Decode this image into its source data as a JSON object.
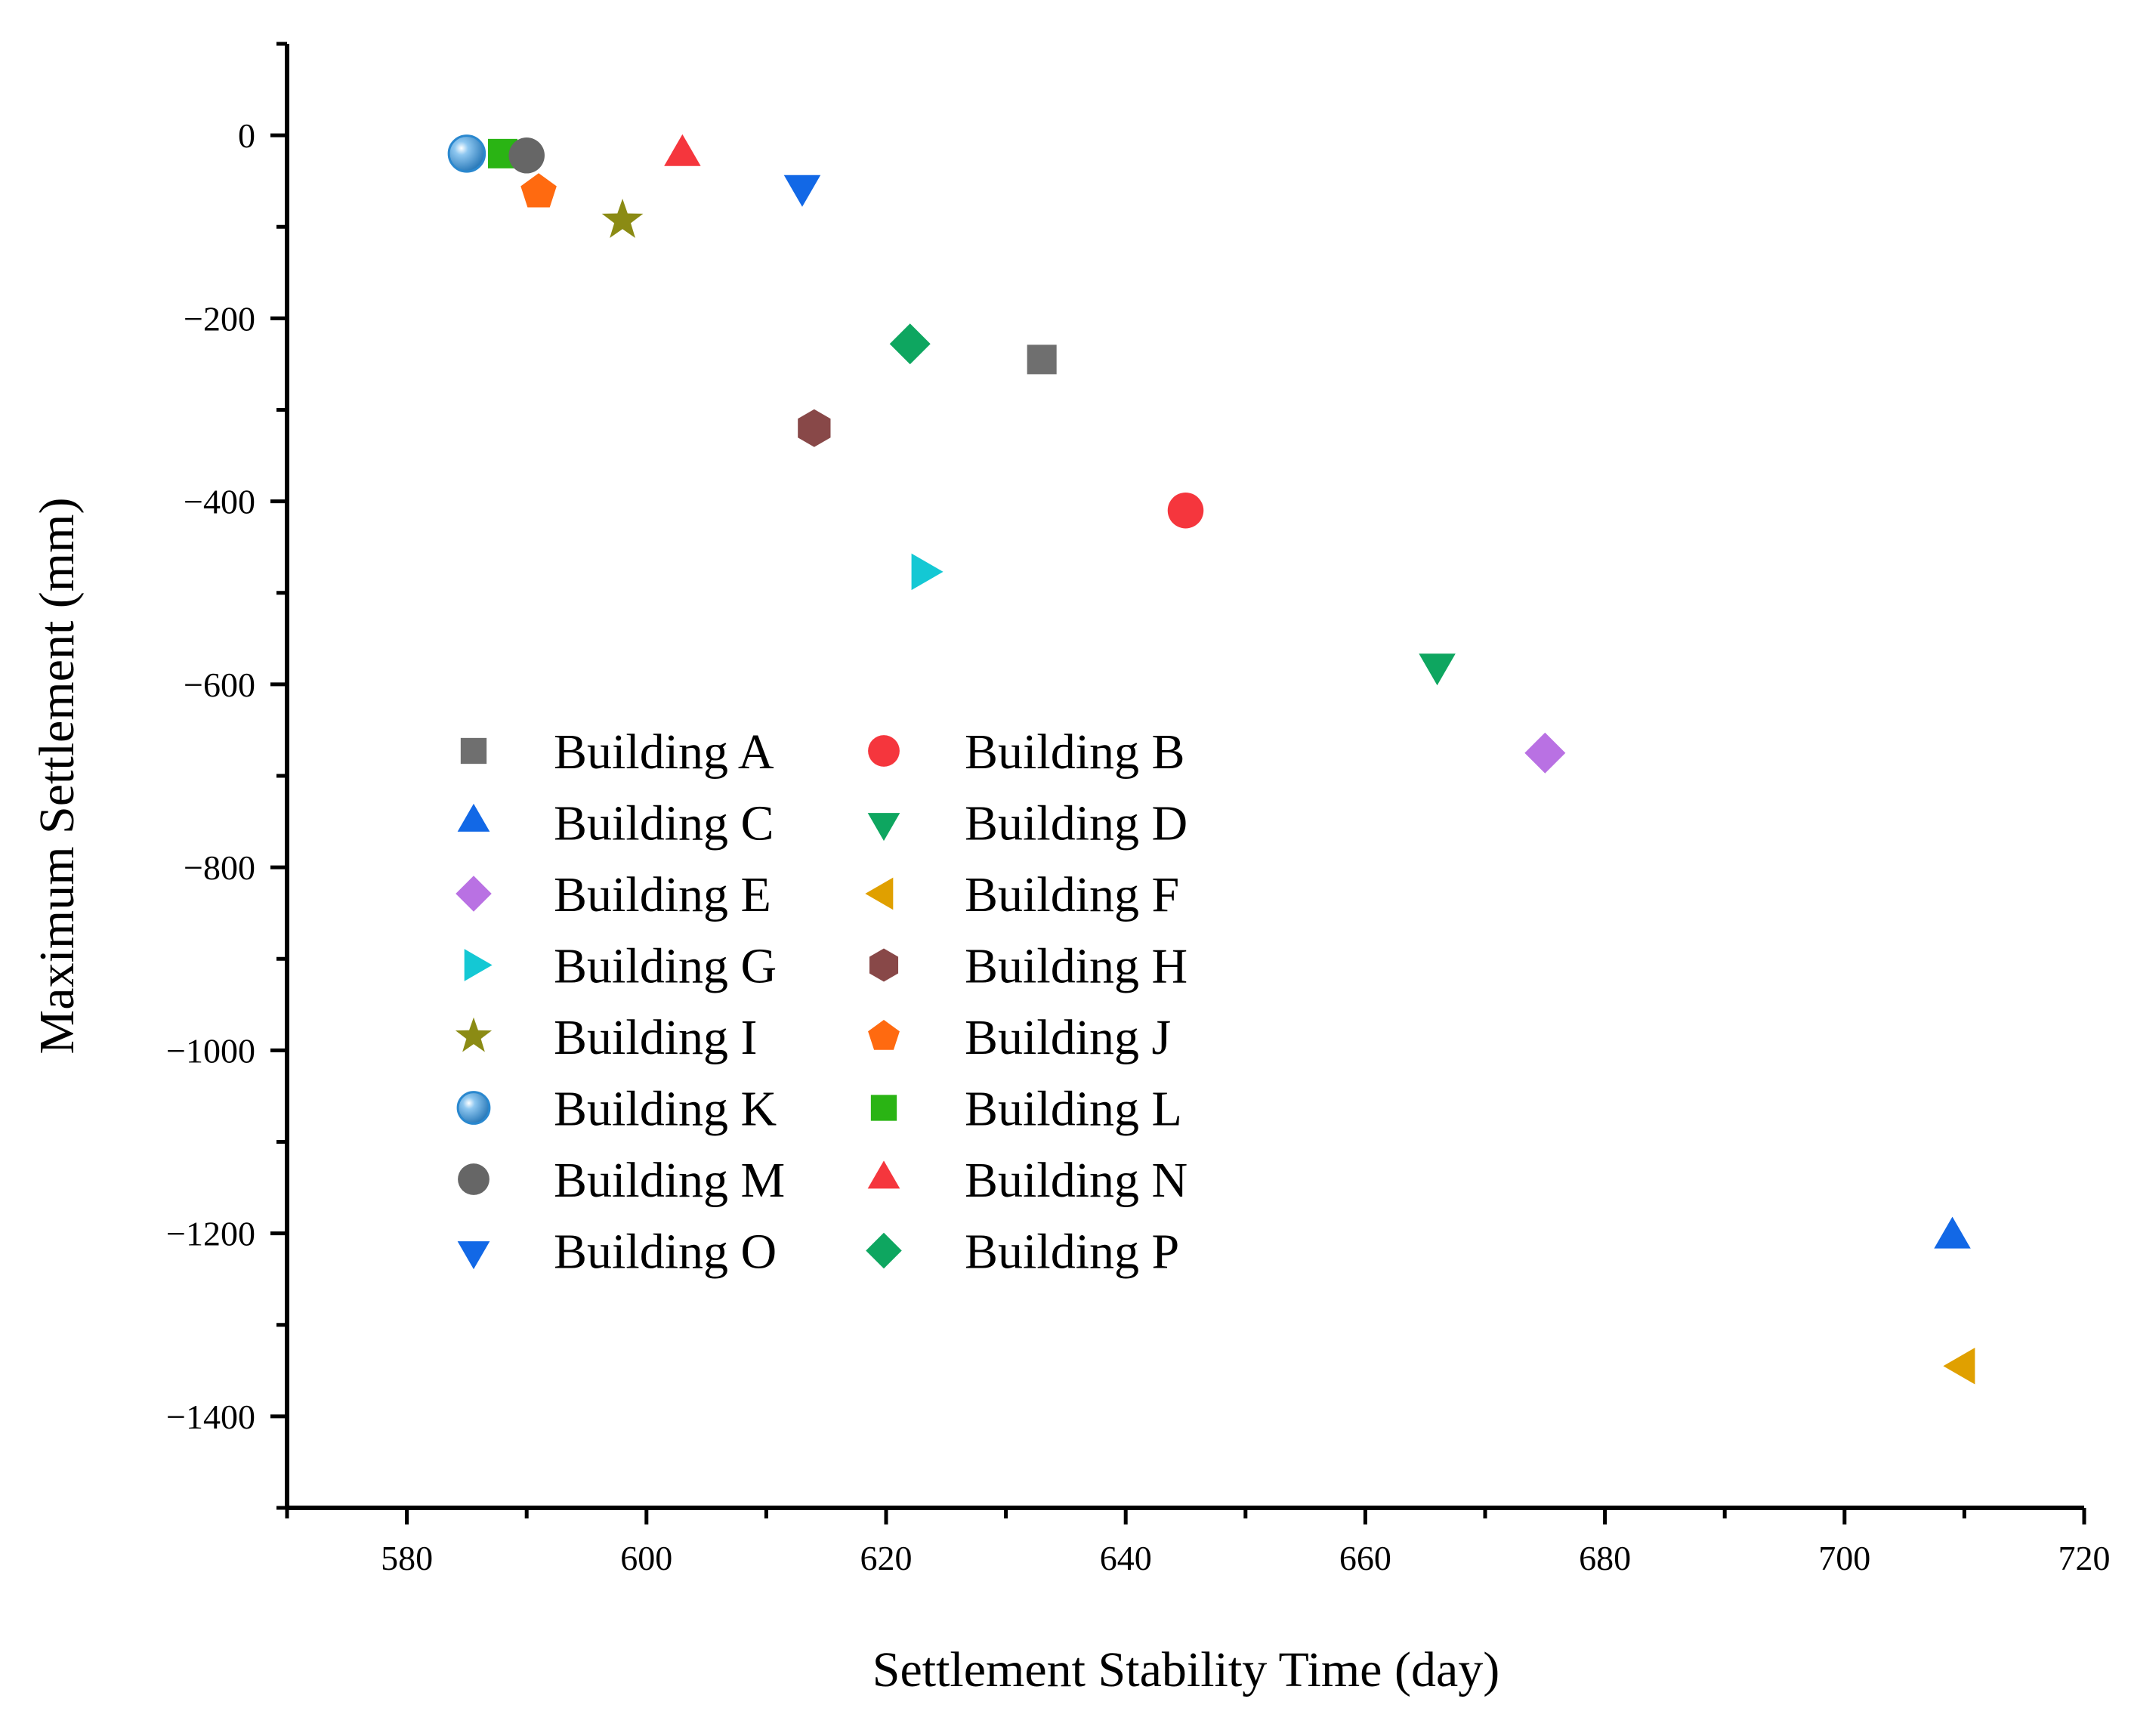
{
  "chart_data": {
    "type": "scatter",
    "title": "",
    "xlabel": "Settlement Stability Time (day)",
    "ylabel": "Maximum Settlement (mm)",
    "xlim": [
      570,
      720
    ],
    "ylim": [
      -1500,
      100
    ],
    "xticks": [
      580,
      600,
      620,
      640,
      660,
      680,
      700,
      720
    ],
    "yticks": [
      0,
      -200,
      -400,
      -600,
      -800,
      -1000,
      -1200,
      -1400
    ],
    "xtick_labels": [
      "580",
      "600",
      "620",
      "640",
      "660",
      "680",
      "700",
      "720"
    ],
    "ytick_labels": [
      "0",
      "−200",
      "−400",
      "−600",
      "−800",
      "−1000",
      "−1200",
      "−1400"
    ],
    "grid": false,
    "legend_position": "center-left",
    "series": [
      {
        "name": "Building A",
        "marker": "square",
        "color": "#6f6f6f",
        "x": 633,
        "y": -245
      },
      {
        "name": "Building B",
        "marker": "circle",
        "color": "#f5363d",
        "x": 645,
        "y": -410
      },
      {
        "name": "Building C",
        "marker": "triangle-up",
        "color": "#1268e6",
        "x": 709,
        "y": -1205
      },
      {
        "name": "Building D",
        "marker": "triangle-down",
        "color": "#0ea660",
        "x": 666,
        "y": -578
      },
      {
        "name": "Building E",
        "marker": "diamond",
        "color": "#b971e3",
        "x": 675,
        "y": -675
      },
      {
        "name": "Building F",
        "marker": "triangle-left",
        "color": "#e0a000",
        "x": 710,
        "y": -1345
      },
      {
        "name": "Building G",
        "marker": "triangle-right",
        "color": "#14c8d4",
        "x": 623,
        "y": -477
      },
      {
        "name": "Building H",
        "marker": "hexagon",
        "color": "#884848",
        "x": 614,
        "y": -320
      },
      {
        "name": "Building I",
        "marker": "star",
        "color": "#8b8b14",
        "x": 598,
        "y": -93
      },
      {
        "name": "Building J",
        "marker": "pentagon",
        "color": "#ff6a10",
        "x": 591,
        "y": -62
      },
      {
        "name": "Building K",
        "marker": "sphere",
        "color": "#2a88cf",
        "x": 585,
        "y": -20
      },
      {
        "name": "Building L",
        "marker": "square",
        "color": "#2ab414",
        "x": 588,
        "y": -20
      },
      {
        "name": "Building M",
        "marker": "circle",
        "color": "#666666",
        "x": 590,
        "y": -22
      },
      {
        "name": "Building N",
        "marker": "triangle-up",
        "color": "#f5363d",
        "x": 603,
        "y": -22
      },
      {
        "name": "Building O",
        "marker": "triangle-down",
        "color": "#1268e6",
        "x": 613,
        "y": -55
      },
      {
        "name": "Building P",
        "marker": "diamond",
        "color": "#0ea660",
        "x": 622,
        "y": -228
      }
    ]
  }
}
